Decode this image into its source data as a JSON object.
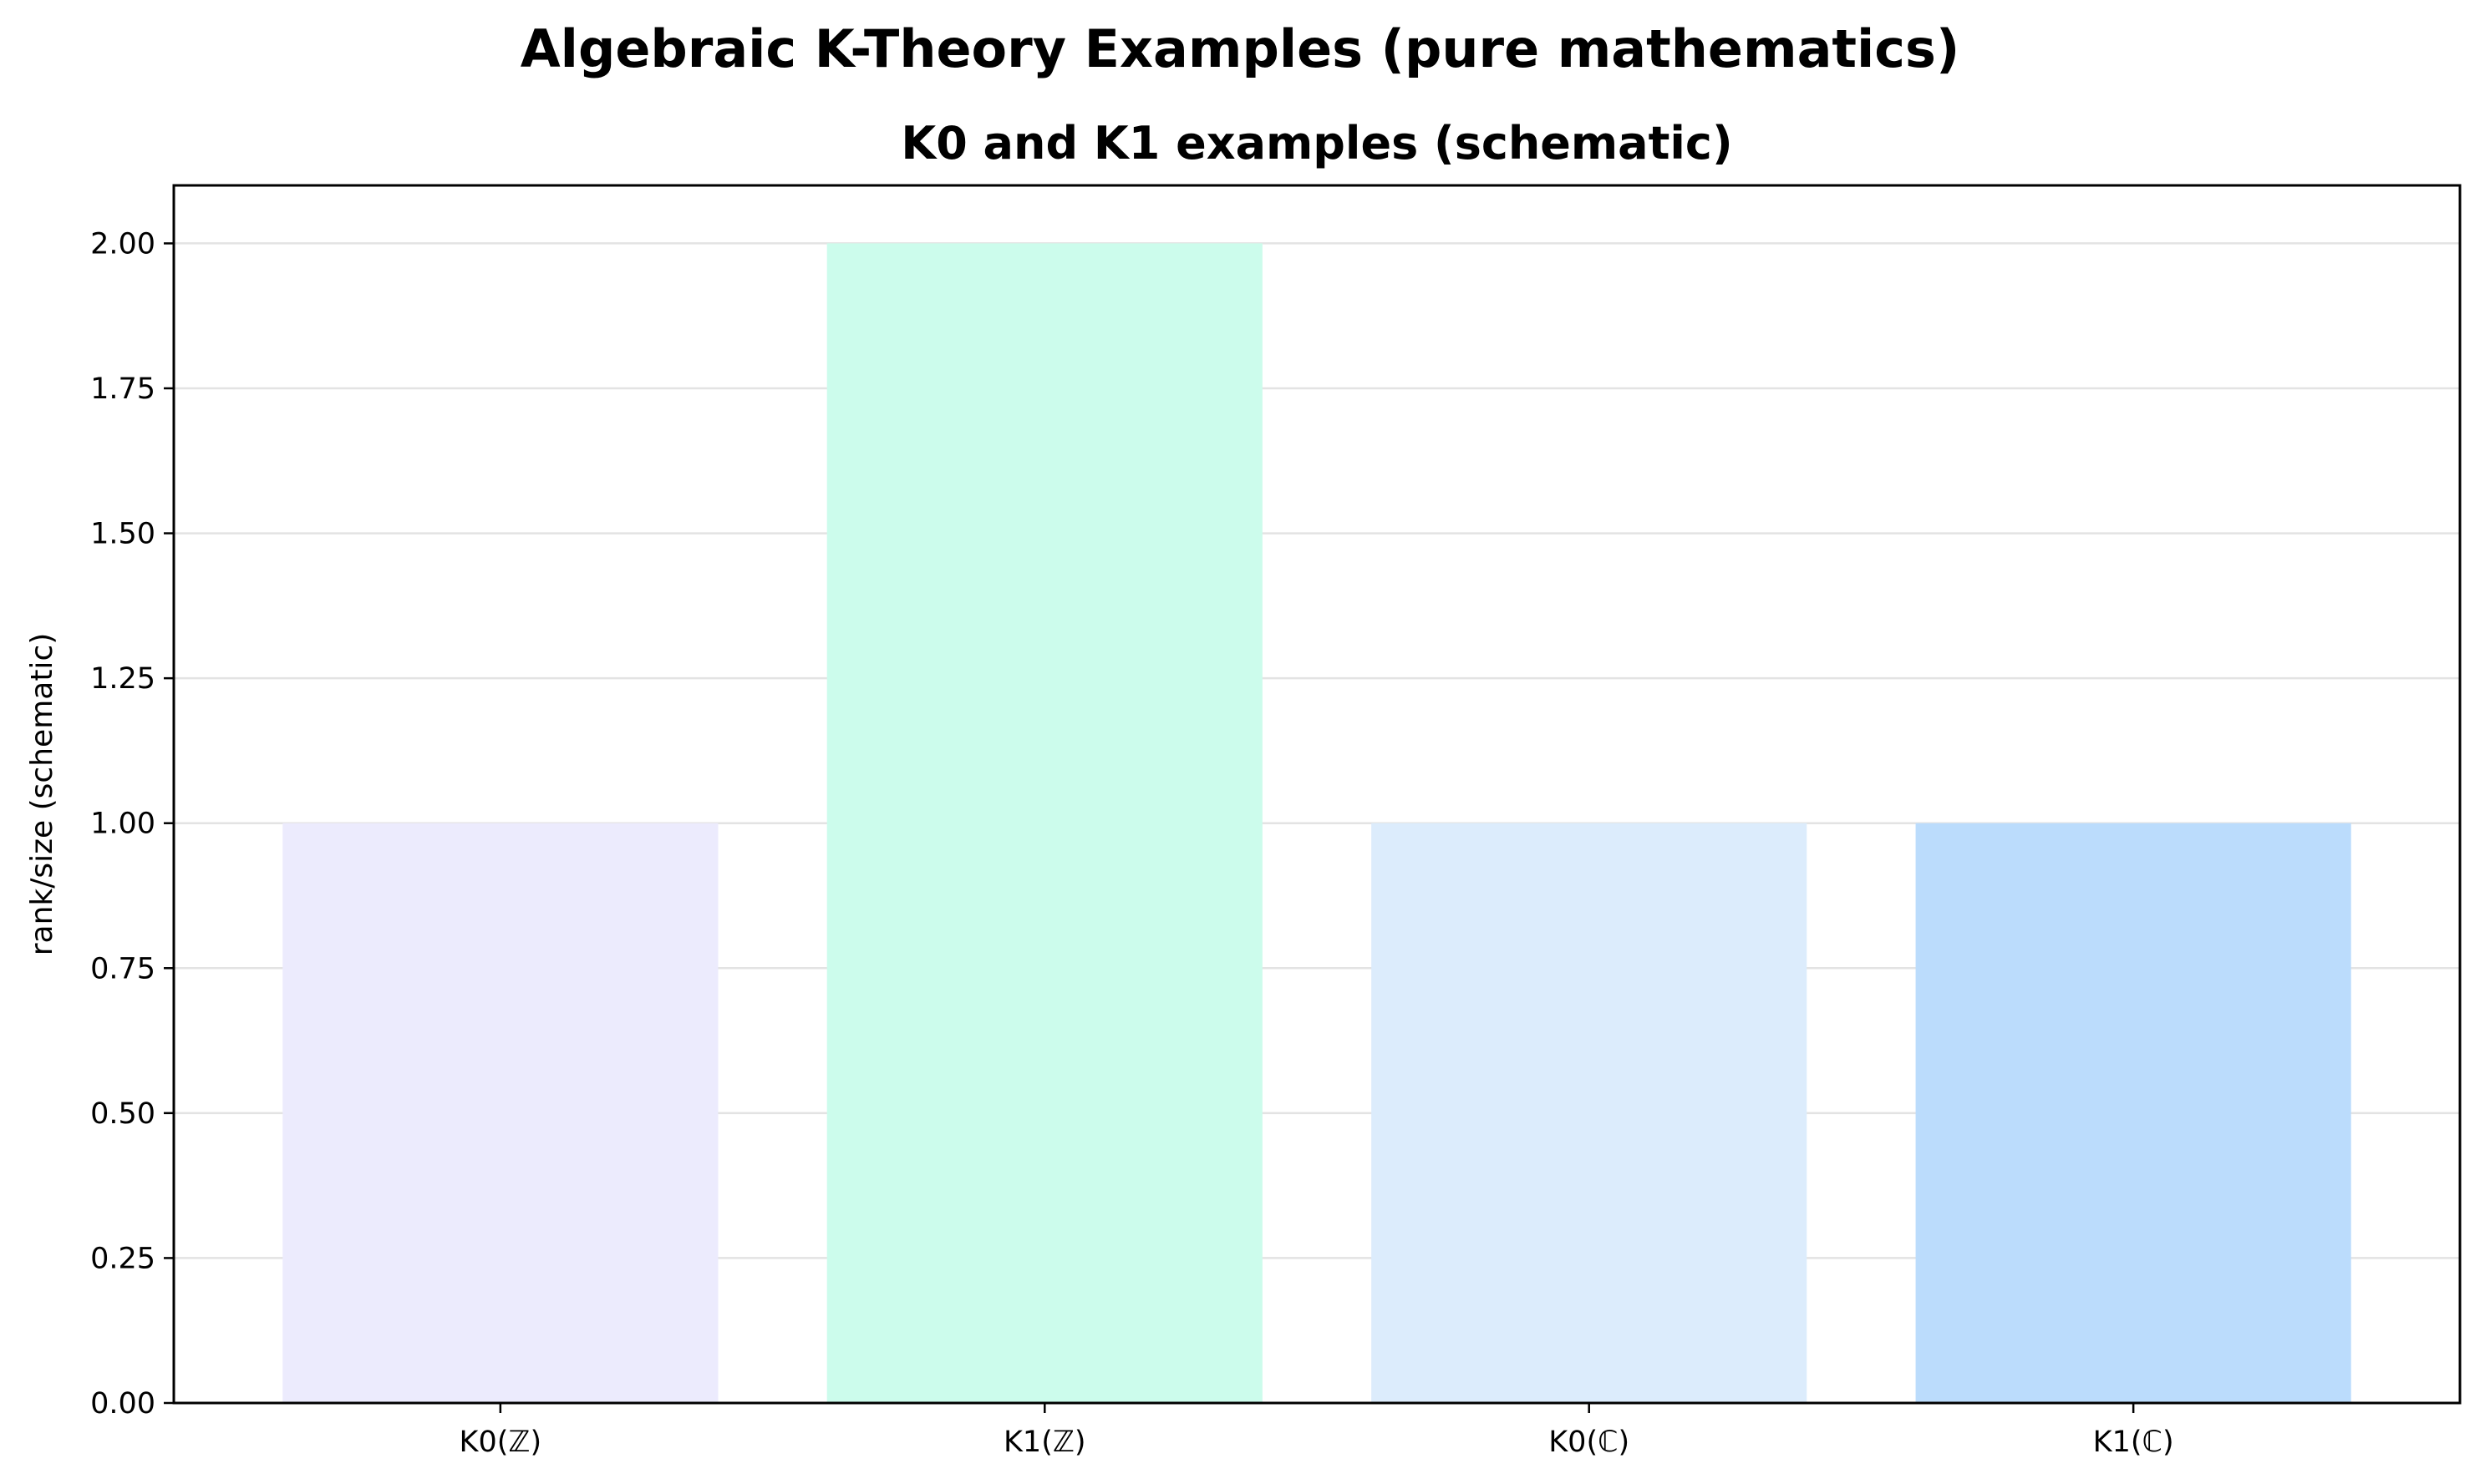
{
  "figure": {
    "suptitle": "Algebraic K-Theory Examples (pure mathematics)"
  },
  "chart_data": {
    "type": "bar",
    "title": "K0 and K1 examples (schematic)",
    "xlabel": "",
    "ylabel": "rank/size (schematic)",
    "categories": [
      "K0(ℤ)",
      "K1(ℤ)",
      "K0(ℂ)",
      "K1(ℂ)"
    ],
    "values": [
      1,
      2,
      1,
      1
    ],
    "colors": [
      "#ecebfd",
      "#ccfcec",
      "#dcecfc",
      "#bbdcfc"
    ],
    "ylim": [
      0,
      2.1
    ],
    "yticks": [
      0,
      0.25,
      0.5,
      0.75,
      1.0,
      1.25,
      1.5,
      1.75,
      2.0
    ],
    "ytick_labels": [
      "0.00",
      "0.25",
      "0.50",
      "0.75",
      "1.00",
      "1.25",
      "1.50",
      "1.75",
      "2.00"
    ],
    "grid": "y",
    "legend": "none"
  }
}
